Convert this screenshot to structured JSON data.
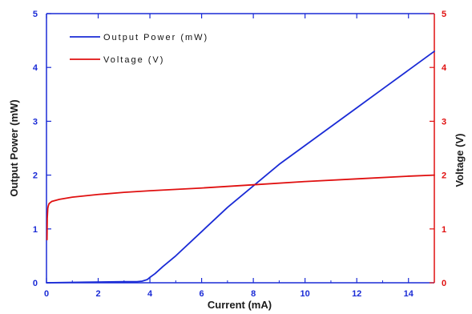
{
  "chart_data": {
    "type": "line",
    "title": "",
    "xlabel": "Current (mA)",
    "ylabel_left": "Output Power (mW)",
    "ylabel_right": "Voltage (V)",
    "xlim": [
      0,
      15
    ],
    "ylim_left": [
      0,
      5
    ],
    "ylim_right": [
      0,
      5
    ],
    "x_ticks": [
      0,
      2,
      4,
      6,
      8,
      10,
      12,
      14
    ],
    "y_ticks_left": [
      0,
      1,
      2,
      3,
      4,
      5
    ],
    "y_ticks_right": [
      0,
      1,
      2,
      3,
      4,
      5
    ],
    "grid": false,
    "legend_position": "top-left",
    "series": [
      {
        "name": "Output Power (mW)",
        "axis": "left",
        "color": "#1a2bd6",
        "x": [
          0,
          1.5,
          3.0,
          3.5,
          3.7,
          3.9,
          4.0,
          4.2,
          4.5,
          5.0,
          6.0,
          7.0,
          8.0,
          9.0,
          10.0,
          11.0,
          12.0,
          13.0,
          14.0,
          15.0
        ],
        "y": [
          0,
          0.01,
          0.02,
          0.02,
          0.03,
          0.06,
          0.1,
          0.17,
          0.3,
          0.5,
          0.95,
          1.4,
          1.8,
          2.2,
          2.55,
          2.9,
          3.25,
          3.6,
          3.95,
          4.3
        ]
      },
      {
        "name": "Voltage (V)",
        "axis": "right",
        "color": "#e01010",
        "x": [
          0.02,
          0.03,
          0.05,
          0.07,
          0.1,
          0.2,
          0.5,
          1.0,
          2.0,
          3.0,
          4.0,
          6.0,
          8.0,
          10.0,
          12.0,
          14.0,
          15.0
        ],
        "y": [
          0.8,
          1.2,
          1.38,
          1.43,
          1.47,
          1.51,
          1.55,
          1.59,
          1.64,
          1.68,
          1.71,
          1.76,
          1.82,
          1.88,
          1.93,
          1.98,
          2.0
        ]
      }
    ]
  },
  "legend": {
    "power_label": "Output Power (mW)",
    "voltage_label": "Voltage (V)"
  }
}
